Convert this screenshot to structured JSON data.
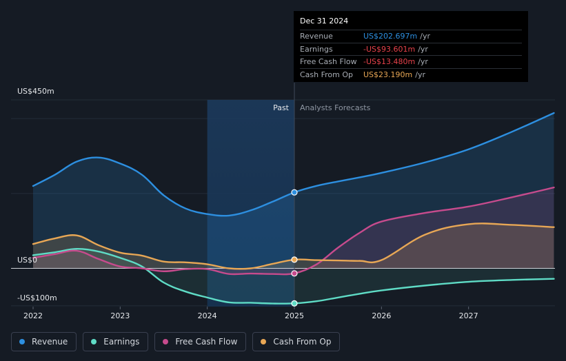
{
  "chart_data": {
    "type": "line",
    "title": "",
    "y_axis": {
      "top_label": "US$450m",
      "zero_label": "US$0",
      "bottom_label": "-US$100m",
      "ylim": [
        -100,
        450
      ]
    },
    "x": [
      "2022",
      "2023",
      "2024",
      "2025",
      "2026",
      "2027"
    ],
    "xlim": [
      2022.0,
      2027.98
    ],
    "past_label": "Past",
    "forecast_label": "Analysts Forecasts",
    "split_x": 2025.0,
    "series": [
      {
        "name": "Revenue",
        "color": "#2d8fe0",
        "points": [
          [
            2022.0,
            220
          ],
          [
            2022.25,
            250
          ],
          [
            2022.5,
            285
          ],
          [
            2022.75,
            296
          ],
          [
            2023.0,
            280
          ],
          [
            2023.25,
            250
          ],
          [
            2023.5,
            195
          ],
          [
            2023.75,
            160
          ],
          [
            2024.0,
            145
          ],
          [
            2024.25,
            141
          ],
          [
            2024.5,
            155
          ],
          [
            2024.75,
            178
          ],
          [
            2025.0,
            203
          ],
          [
            2025.25,
            220
          ],
          [
            2025.5,
            232
          ],
          [
            2025.75,
            243
          ],
          [
            2026.0,
            255
          ],
          [
            2026.5,
            283
          ],
          [
            2027.0,
            318
          ],
          [
            2027.5,
            365
          ],
          [
            2027.98,
            415
          ]
        ]
      },
      {
        "name": "Earnings",
        "color": "#5fdcc6",
        "points": [
          [
            2022.0,
            35
          ],
          [
            2022.25,
            43
          ],
          [
            2022.5,
            52
          ],
          [
            2022.75,
            45
          ],
          [
            2023.0,
            28
          ],
          [
            2023.25,
            5
          ],
          [
            2023.5,
            -38
          ],
          [
            2023.75,
            -62
          ],
          [
            2024.0,
            -78
          ],
          [
            2024.25,
            -91
          ],
          [
            2024.5,
            -92
          ],
          [
            2024.75,
            -94
          ],
          [
            2025.0,
            -93.6
          ],
          [
            2025.25,
            -88
          ],
          [
            2025.5,
            -78
          ],
          [
            2025.75,
            -68
          ],
          [
            2026.0,
            -59
          ],
          [
            2026.5,
            -46
          ],
          [
            2027.0,
            -36
          ],
          [
            2027.5,
            -31
          ],
          [
            2027.98,
            -28
          ]
        ]
      },
      {
        "name": "Free Cash Flow",
        "color": "#c74b8d",
        "points": [
          [
            2022.0,
            28
          ],
          [
            2022.25,
            38
          ],
          [
            2022.5,
            47
          ],
          [
            2022.75,
            25
          ],
          [
            2023.0,
            5
          ],
          [
            2023.25,
            0
          ],
          [
            2023.5,
            -8
          ],
          [
            2023.75,
            -2
          ],
          [
            2024.0,
            -2
          ],
          [
            2024.25,
            -15
          ],
          [
            2024.5,
            -14
          ],
          [
            2024.75,
            -15
          ],
          [
            2025.0,
            -13.5
          ],
          [
            2025.25,
            10
          ],
          [
            2025.5,
            55
          ],
          [
            2025.75,
            95
          ],
          [
            2026.0,
            125
          ],
          [
            2026.5,
            148
          ],
          [
            2027.0,
            165
          ],
          [
            2027.5,
            190
          ],
          [
            2027.98,
            216
          ]
        ]
      },
      {
        "name": "Cash From Op",
        "color": "#e8a755",
        "points": [
          [
            2022.0,
            65
          ],
          [
            2022.25,
            80
          ],
          [
            2022.5,
            88
          ],
          [
            2022.75,
            62
          ],
          [
            2023.0,
            42
          ],
          [
            2023.25,
            34
          ],
          [
            2023.5,
            18
          ],
          [
            2023.75,
            16
          ],
          [
            2024.0,
            11
          ],
          [
            2024.25,
            0
          ],
          [
            2024.5,
            0
          ],
          [
            2024.75,
            12
          ],
          [
            2025.0,
            23.2
          ],
          [
            2025.25,
            22
          ],
          [
            2025.5,
            21
          ],
          [
            2025.75,
            20
          ],
          [
            2026.0,
            22
          ],
          [
            2026.5,
            90
          ],
          [
            2027.0,
            118
          ],
          [
            2027.5,
            116
          ],
          [
            2027.98,
            110
          ]
        ]
      }
    ]
  },
  "tooltip": {
    "date": "Dec 31 2024",
    "rows": [
      {
        "label": "Revenue",
        "value": "US$202.697m",
        "unit": "/yr",
        "color": "#2d8fe0"
      },
      {
        "label": "Earnings",
        "value": "-US$93.601m",
        "unit": "/yr",
        "color": "#e8424b"
      },
      {
        "label": "Free Cash Flow",
        "value": "-US$13.480m",
        "unit": "/yr",
        "color": "#e8424b"
      },
      {
        "label": "Cash From Op",
        "value": "US$23.190m",
        "unit": "/yr",
        "color": "#e8a755"
      }
    ]
  },
  "legend": [
    {
      "label": "Revenue",
      "color": "#2d8fe0"
    },
    {
      "label": "Earnings",
      "color": "#5fdcc6"
    },
    {
      "label": "Free Cash Flow",
      "color": "#c74b8d"
    },
    {
      "label": "Cash From Op",
      "color": "#e8a755"
    }
  ]
}
